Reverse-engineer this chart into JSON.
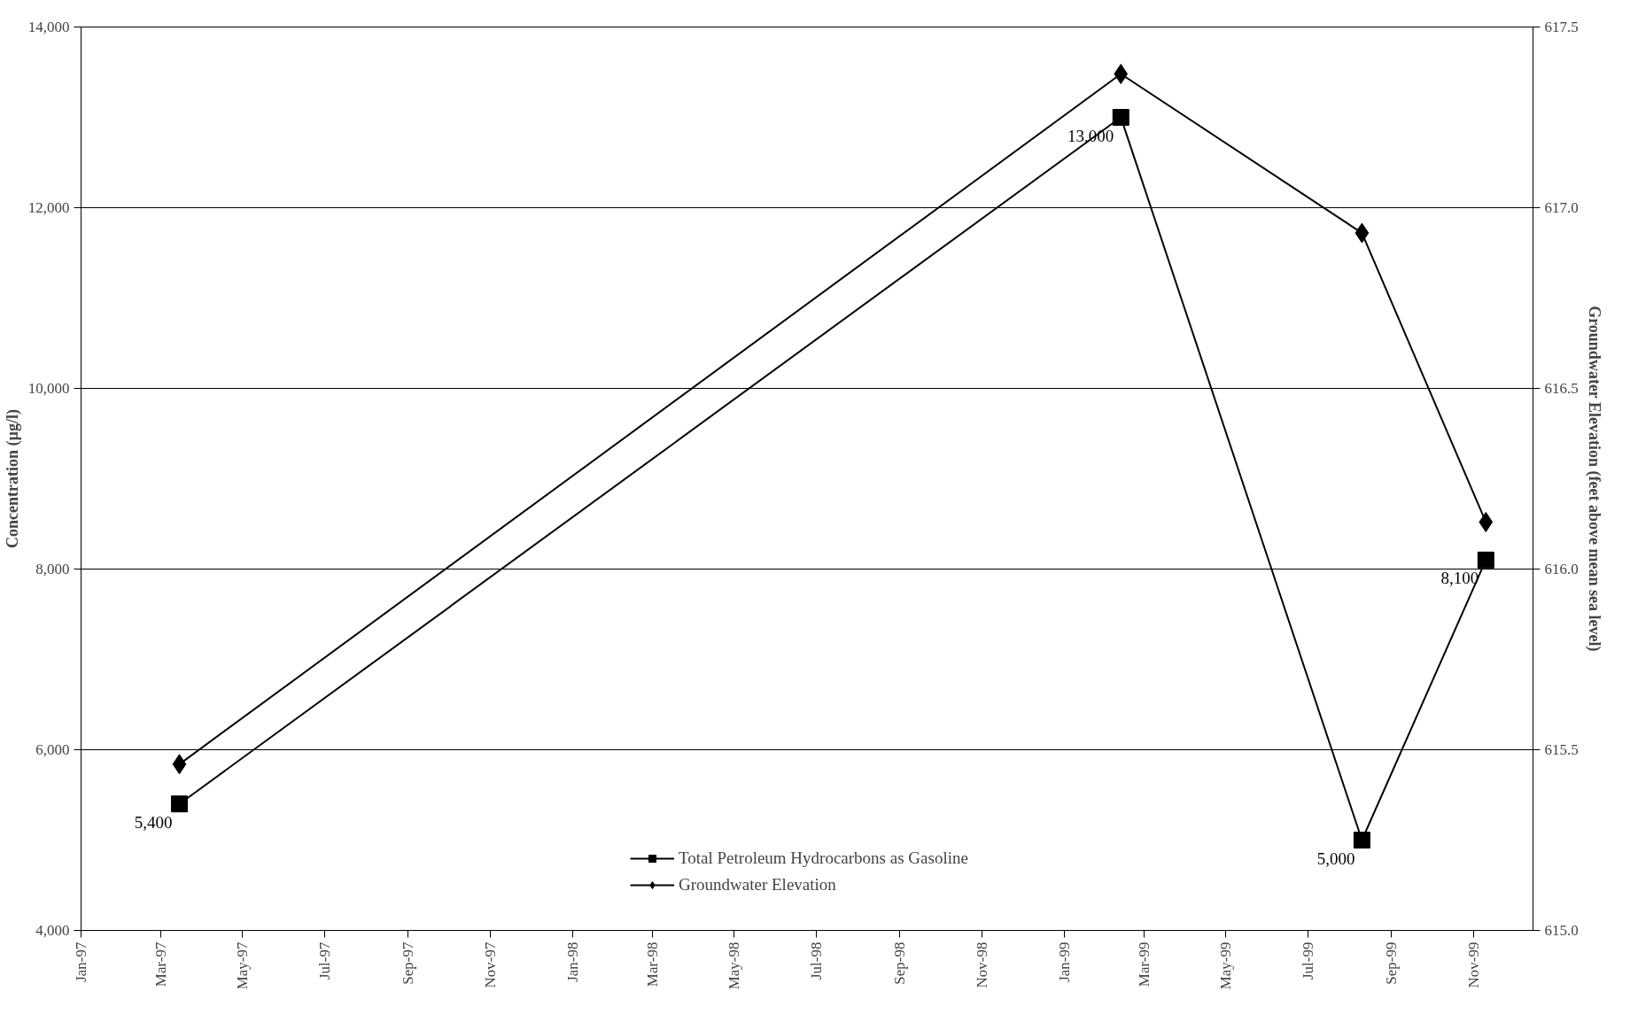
{
  "chart_data": {
    "type": "line",
    "ylabel": "Concentration (µg/l)",
    "y2label": "Groundwater Elevation (feet above mean sea level)",
    "xlim": [
      "1997-01-01",
      "1999-12-15"
    ],
    "xticks": [
      {
        "value": "1997-01",
        "label": "Jan-97"
      },
      {
        "value": "1997-03",
        "label": "Mar-97"
      },
      {
        "value": "1997-05",
        "label": "May-97"
      },
      {
        "value": "1997-07",
        "label": "Jul-97"
      },
      {
        "value": "1997-09",
        "label": "Sep-97"
      },
      {
        "value": "1997-11",
        "label": "Nov-97"
      },
      {
        "value": "1998-01",
        "label": "Jan-98"
      },
      {
        "value": "1998-03",
        "label": "Mar-98"
      },
      {
        "value": "1998-05",
        "label": "May-98"
      },
      {
        "value": "1998-07",
        "label": "Jul-98"
      },
      {
        "value": "1998-09",
        "label": "Sep-98"
      },
      {
        "value": "1998-11",
        "label": "Nov-98"
      },
      {
        "value": "1999-01",
        "label": "Jan-99"
      },
      {
        "value": "1999-03",
        "label": "Mar-99"
      },
      {
        "value": "1999-05",
        "label": "May-99"
      },
      {
        "value": "1999-07",
        "label": "Jul-99"
      },
      {
        "value": "1999-09",
        "label": "Sep-99"
      },
      {
        "value": "1999-11",
        "label": "Nov-99"
      }
    ],
    "ylim": [
      4000,
      14000
    ],
    "yticks": [
      {
        "value": 4000,
        "label": "4,000"
      },
      {
        "value": 6000,
        "label": "6,000"
      },
      {
        "value": 8000,
        "label": "8,000"
      },
      {
        "value": 10000,
        "label": "10,000"
      },
      {
        "value": 12000,
        "label": "12,000"
      },
      {
        "value": 14000,
        "label": "14,000"
      }
    ],
    "y2lim": [
      615.0,
      617.5
    ],
    "y2ticks": [
      {
        "value": 615.0,
        "label": "615.0"
      },
      {
        "value": 615.5,
        "label": "615.5"
      },
      {
        "value": 616.0,
        "label": "616.0"
      },
      {
        "value": 616.5,
        "label": "616.5"
      },
      {
        "value": 617.0,
        "label": "617.0"
      },
      {
        "value": 617.5,
        "label": "617.5"
      }
    ],
    "grid": "y",
    "legend": "bottom",
    "series": [
      {
        "name": "Total Petroleum Hydrocarbons as Gasoline",
        "color": "#000000",
        "marker": "square",
        "x": [
          "1997-03-15",
          "1999-02-12",
          "1999-08-10",
          "1999-11-10"
        ],
        "values": [
          5400,
          13000,
          5000,
          8100
        ],
        "value_labels": [
          "5,400",
          "13,000",
          "5,000",
          "8,100"
        ]
      },
      {
        "name": "Groundwater Elevation",
        "color": "#000000",
        "marker": "diamond",
        "axis": "y2",
        "x": [
          "1997-03-15",
          "1999-02-12",
          "1999-08-10",
          "1999-11-10"
        ],
        "values": [
          615.46,
          617.37,
          616.93,
          616.13
        ]
      }
    ]
  }
}
